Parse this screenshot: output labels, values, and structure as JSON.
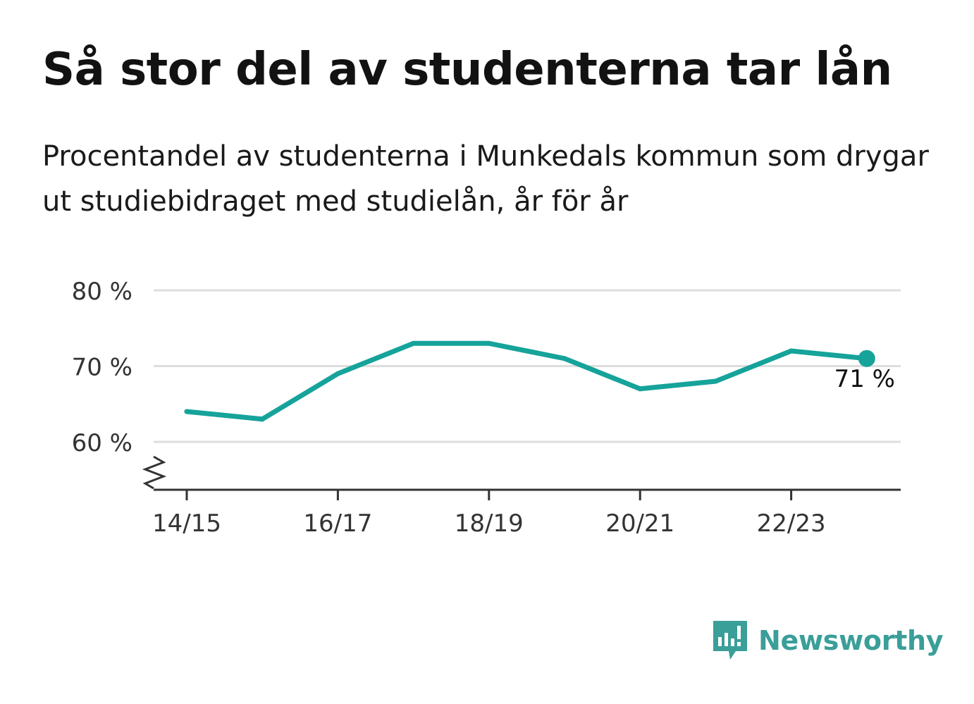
{
  "header": {
    "title": "Så stor del av studenterna tar lån",
    "subtitle": "Procentandel av studenterna i Munkedals kommun som drygar ut studiebidraget med studielån, år för år"
  },
  "brand": {
    "name": "Newsworthy",
    "color": "#3a9e99"
  },
  "chart_data": {
    "type": "line",
    "title": "Så stor del av studenterna tar lån",
    "subtitle": "Procentandel av studenterna i Munkedals kommun som drygar ut studiebidraget med studielån, år för år",
    "x": [
      "14/15",
      "15/16",
      "16/17",
      "17/18",
      "18/19",
      "19/20",
      "20/21",
      "21/22",
      "22/23",
      "23/24"
    ],
    "x_tick_labels": [
      "14/15",
      "16/17",
      "18/19",
      "20/21",
      "22/23"
    ],
    "y_tick_labels": [
      "80 %",
      "70 %",
      "60 %"
    ],
    "y_ticks": [
      80,
      70,
      60
    ],
    "ylim": [
      54,
      80
    ],
    "axis_break": true,
    "grid": true,
    "series": [
      {
        "values": [
          64,
          63,
          69,
          73,
          73,
          71,
          67,
          68,
          72,
          71
        ]
      }
    ],
    "end_label": "71 %",
    "line_color": "#15a39a",
    "grid_color": "#dddddd",
    "axis_color": "#333333"
  }
}
